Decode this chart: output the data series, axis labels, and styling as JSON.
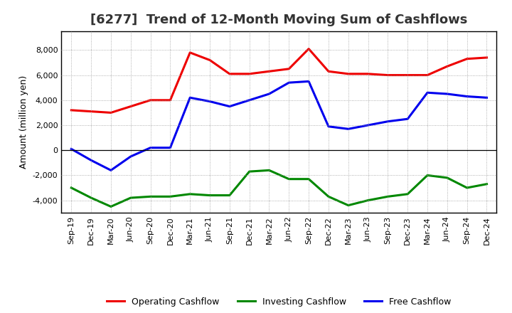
{
  "title": "[6277]  Trend of 12-Month Moving Sum of Cashflows",
  "ylabel": "Amount (million yen)",
  "x_labels": [
    "Sep-19",
    "Dec-19",
    "Mar-20",
    "Jun-20",
    "Sep-20",
    "Dec-20",
    "Mar-21",
    "Jun-21",
    "Sep-21",
    "Dec-21",
    "Mar-22",
    "Jun-22",
    "Sep-22",
    "Dec-22",
    "Mar-23",
    "Jun-23",
    "Sep-23",
    "Dec-23",
    "Mar-24",
    "Jun-24",
    "Sep-24",
    "Dec-24"
  ],
  "operating": [
    3200,
    3100,
    3000,
    3500,
    4000,
    4000,
    7800,
    7200,
    6100,
    6100,
    6300,
    6500,
    8100,
    6300,
    6100,
    6100,
    6000,
    6000,
    6000,
    6700,
    7300,
    7400
  ],
  "investing": [
    -3000,
    -3800,
    -4500,
    -3800,
    -3700,
    -3700,
    -3500,
    -3600,
    -3600,
    -1700,
    -1600,
    -2300,
    -2300,
    -3700,
    -4400,
    -4000,
    -3700,
    -3500,
    -2000,
    -2200,
    -3000,
    -2700
  ],
  "free": [
    100,
    -800,
    -1600,
    -500,
    200,
    200,
    4200,
    3900,
    3500,
    4000,
    4500,
    5400,
    5500,
    1900,
    1700,
    2000,
    2300,
    2500,
    4600,
    4500,
    4300,
    4200
  ],
  "operating_color": "#EE0000",
  "investing_color": "#008800",
  "free_color": "#0000EE",
  "ylim": [
    -5000,
    9500
  ],
  "yticks": [
    -4000,
    -2000,
    0,
    2000,
    4000,
    6000,
    8000
  ],
  "background_color": "#FFFFFF",
  "grid_color": "#999999",
  "linewidth": 2.2,
  "title_color": "#333333",
  "title_fontsize": 13,
  "tick_fontsize": 8,
  "ylabel_fontsize": 9
}
